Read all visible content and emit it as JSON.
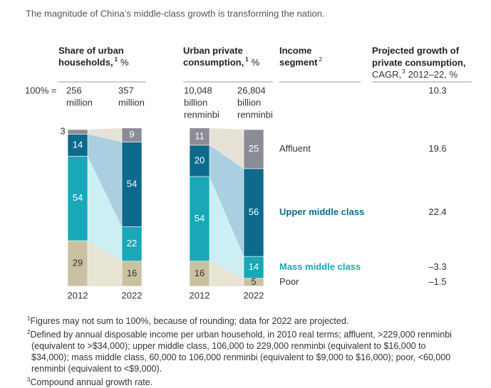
{
  "title": "The magnitude of China’s middle-class growth is transforming the nation.",
  "chart_data": {
    "type": "stacked-slope",
    "categories": [
      "2012",
      "2022"
    ],
    "total_label": "100% =",
    "panels": [
      {
        "key": "households",
        "heading": [
          "Share of urban",
          "households,"
        ],
        "note": "1",
        "unit": "%",
        "totals": [
          [
            "256",
            "million"
          ],
          [
            "357",
            "million"
          ]
        ]
      },
      {
        "key": "consumption",
        "heading": [
          "Urban private",
          "consumption,"
        ],
        "note": "1",
        "unit": "%",
        "totals": [
          [
            "10,048",
            "billion",
            "renminbi"
          ],
          [
            "26,804",
            "billion",
            "renminbi"
          ]
        ]
      }
    ],
    "series": [
      {
        "name": "Affluent",
        "color": "#8c8c96",
        "band_color": "#e6e3d6",
        "label_color": "#ffffff",
        "bold": false,
        "households": [
          3,
          9
        ],
        "consumption": [
          11,
          25
        ],
        "growth": "19.6"
      },
      {
        "name": "Upper middle class",
        "color": "#0d6a8c",
        "band_color": "#aacfe1",
        "label_color": "#ffffff",
        "bold": true,
        "households": [
          14,
          54
        ],
        "consumption": [
          20,
          56
        ],
        "growth": "22.4"
      },
      {
        "name": "Mass middle class",
        "color": "#1aa7b8",
        "band_color": "#cdeef3",
        "label_color": "#ffffff",
        "bold": true,
        "households": [
          54,
          22
        ],
        "consumption": [
          54,
          14
        ],
        "growth": "–3.3"
      },
      {
        "name": "Poor",
        "color": "#c9c1a1",
        "band_color": "#e8e4d4",
        "label_color": "#333333",
        "bold": false,
        "households": [
          29,
          16
        ],
        "consumption": [
          16,
          5
        ],
        "growth": "–1.5"
      }
    ],
    "segment_heading": [
      "Income",
      "segment"
    ],
    "segment_note": "2",
    "growth_heading": [
      "Projected growth of",
      "private consumption,"
    ],
    "cagr": "CAGR,",
    "cagr_note": "3",
    "cagr_period": "2012–22, %",
    "growth_total": "10.3"
  },
  "footnotes": [
    {
      "mark": "1",
      "text": "Figures may not sum to 100%, because of rounding; data for 2022 are projected."
    },
    {
      "mark": "2",
      "text": "Defined by annual disposable income per urban household, in 2010 real terms; affluent, >229,000 renminbi (equivalent to >$34,000); upper middle class, 106,000 to 229,000 renminbi (equivalent to $16,000 to $34,000); mass middle class, 60,000 to 106,000 renminbi (equivalent to $9,000 to $16,000); poor, <60,000 renminbi (equivalent to <$9,000)."
    },
    {
      "mark": "3",
      "text": "Compound annual growth rate."
    }
  ]
}
